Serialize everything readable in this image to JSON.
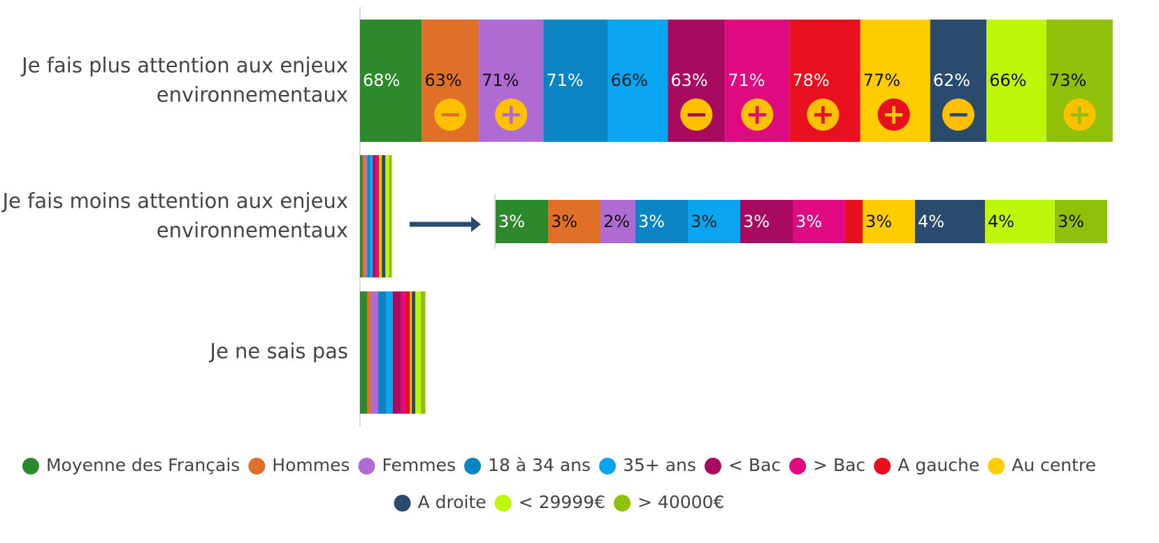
{
  "chart_data": {
    "type": "stacked-bar-horizontal",
    "categories": [
      "Je fais plus attention aux enjeux environnementaux",
      "Je fais moins attention aux enjeux environnementaux",
      "Je ne sais pas"
    ],
    "xlim": [
      0,
      880
    ],
    "legend": "bottom",
    "series": [
      {
        "name": "Moyenne des Français",
        "color": "#2d8a2c",
        "label_color": "#ffffff",
        "values": [
          68,
          3,
          8
        ],
        "value_labels": [
          "68%",
          "3%",
          null
        ],
        "significance": null
      },
      {
        "name": "Hommes",
        "color": "#e07028",
        "label_color": "#111111",
        "values": [
          63,
          3,
          4
        ],
        "value_labels": [
          "63%",
          "3%",
          null
        ],
        "significance": "−"
      },
      {
        "name": "Femmes",
        "color": "#b06ad4",
        "label_color": "#111111",
        "values": [
          71,
          2,
          8
        ],
        "value_labels": [
          "71%",
          "2%",
          null
        ],
        "significance": "+"
      },
      {
        "name": "18 à 34 ans",
        "color": "#0a84c4",
        "label_color": "#ffffff",
        "values": [
          71,
          3,
          9
        ],
        "value_labels": [
          "71%",
          "3%",
          null
        ],
        "significance": null
      },
      {
        "name": "35+ ans",
        "color": "#0aa5f0",
        "label_color": "#222222",
        "values": [
          66,
          3,
          7
        ],
        "value_labels": [
          "66%",
          "3%",
          null
        ],
        "significance": null
      },
      {
        "name": "< Bac",
        "color": "#a70a5e",
        "label_color": "#ffffff",
        "values": [
          63,
          3,
          9
        ],
        "value_labels": [
          "63%",
          "3%",
          null
        ],
        "significance": "−"
      },
      {
        "name": "> Bac",
        "color": "#e00a80",
        "label_color": "#ffffff",
        "values": [
          71,
          3,
          5
        ],
        "value_labels": [
          "71%",
          "3%",
          null
        ],
        "significance": "+"
      },
      {
        "name": "A gauche",
        "color": "#e8101e",
        "label_color": "#ffffff",
        "values": [
          78,
          1,
          5
        ],
        "value_labels": [
          "78%",
          null,
          null
        ],
        "significance": "+"
      },
      {
        "name": "Au centre",
        "color": "#ffcc00",
        "label_color": "#111111",
        "values": [
          77,
          3,
          2
        ],
        "value_labels": [
          "77%",
          "3%",
          null
        ],
        "significance": "+"
      },
      {
        "name": "A droite",
        "color": "#2a4a6e",
        "label_color": "#ffffff",
        "values": [
          62,
          4,
          4
        ],
        "value_labels": [
          "62%",
          "4%",
          null
        ],
        "significance": "−"
      },
      {
        "name": "< 29999€",
        "color": "#bef70a",
        "label_color": "#111111",
        "values": [
          66,
          4,
          6
        ],
        "value_labels": [
          "66%",
          "4%",
          null
        ],
        "significance": null
      },
      {
        "name": "> 40000€",
        "color": "#8fc00a",
        "label_color": "#111111",
        "values": [
          73,
          3,
          5
        ],
        "value_labels": [
          "73%",
          "3%",
          null
        ],
        "significance": "+"
      }
    ]
  }
}
